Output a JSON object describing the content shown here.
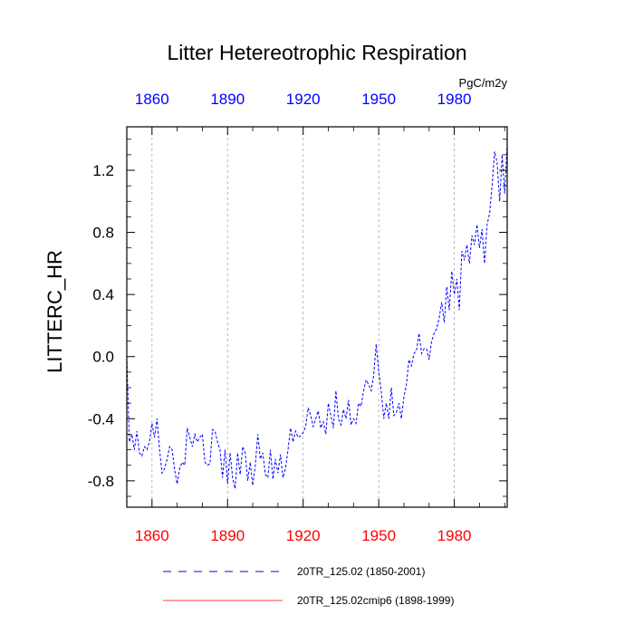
{
  "chart_data": {
    "type": "line",
    "title": "Litter Hetereotrophic Respiration",
    "ylabel": "LITTERC_HR",
    "units": "PgC/m2y",
    "xlim": [
      1850,
      2001
    ],
    "ylim": [
      -0.97,
      1.48
    ],
    "x_ticks": [
      1860,
      1890,
      1920,
      1950,
      1980
    ],
    "x_tick_labels": [
      "1860",
      "1890",
      "1920",
      "1950",
      "1980"
    ],
    "y_ticks": [
      -0.8,
      -0.4,
      0.0,
      0.4,
      0.8,
      1.2
    ],
    "y_tick_labels": [
      "-0.8",
      "-0.4",
      "0.0",
      "0.4",
      "0.8",
      "1.2"
    ],
    "grid": "vertical dashed",
    "legend_position": "bottom",
    "colors": {
      "series1": "#0000ff",
      "series2": "#ff0000",
      "top_ticks": "#0000ff",
      "bottom_ticks": "#ff0000",
      "grid": "#aaaaaa"
    },
    "series": [
      {
        "name": "20TR_125.02 (1850-2001)",
        "line_style": "dashed",
        "x": [
          1850,
          1851,
          1852,
          1853,
          1854,
          1855,
          1856,
          1857,
          1858,
          1859,
          1860,
          1861,
          1862,
          1863,
          1864,
          1865,
          1866,
          1867,
          1868,
          1869,
          1870,
          1871,
          1872,
          1873,
          1874,
          1875,
          1876,
          1877,
          1878,
          1879,
          1880,
          1881,
          1882,
          1883,
          1884,
          1885,
          1886,
          1887,
          1888,
          1889,
          1890,
          1891,
          1892,
          1893,
          1894,
          1895,
          1896,
          1897,
          1898,
          1899,
          1900,
          1901,
          1902,
          1903,
          1904,
          1905,
          1906,
          1907,
          1908,
          1909,
          1910,
          1911,
          1912,
          1913,
          1914,
          1915,
          1916,
          1917,
          1918,
          1919,
          1920,
          1921,
          1922,
          1923,
          1924,
          1925,
          1926,
          1927,
          1928,
          1929,
          1930,
          1931,
          1932,
          1933,
          1934,
          1935,
          1936,
          1937,
          1938,
          1939,
          1940,
          1941,
          1942,
          1943,
          1944,
          1945,
          1946,
          1947,
          1948,
          1949,
          1950,
          1951,
          1952,
          1953,
          1954,
          1955,
          1956,
          1957,
          1958,
          1959,
          1960,
          1961,
          1962,
          1963,
          1964,
          1965,
          1966,
          1967,
          1968,
          1969,
          1970,
          1971,
          1972,
          1973,
          1974,
          1975,
          1976,
          1977,
          1978,
          1979,
          1980,
          1981,
          1982,
          1983,
          1984,
          1985,
          1986,
          1987,
          1988,
          1989,
          1990,
          1991,
          1992,
          1993,
          1994,
          1995,
          1996,
          1997,
          1998,
          1999,
          2000,
          2001
        ],
        "values": [
          0.0,
          -0.55,
          -0.5,
          -0.6,
          -0.48,
          -0.62,
          -0.64,
          -0.58,
          -0.6,
          -0.55,
          -0.43,
          -0.52,
          -0.4,
          -0.6,
          -0.75,
          -0.72,
          -0.66,
          -0.58,
          -0.6,
          -0.73,
          -0.82,
          -0.72,
          -0.68,
          -0.7,
          -0.46,
          -0.52,
          -0.58,
          -0.5,
          -0.55,
          -0.52,
          -0.5,
          -0.68,
          -0.7,
          -0.69,
          -0.47,
          -0.48,
          -0.55,
          -0.6,
          -0.78,
          -0.6,
          -0.82,
          -0.62,
          -0.78,
          -0.85,
          -0.62,
          -0.76,
          -0.58,
          -0.62,
          -0.8,
          -0.68,
          -0.83,
          -0.7,
          -0.5,
          -0.66,
          -0.62,
          -0.76,
          -0.78,
          -0.6,
          -0.79,
          -0.66,
          -0.75,
          -0.63,
          -0.78,
          -0.72,
          -0.6,
          -0.46,
          -0.55,
          -0.48,
          -0.52,
          -0.51,
          -0.49,
          -0.45,
          -0.33,
          -0.38,
          -0.45,
          -0.4,
          -0.35,
          -0.46,
          -0.42,
          -0.5,
          -0.3,
          -0.38,
          -0.46,
          -0.22,
          -0.4,
          -0.44,
          -0.34,
          -0.4,
          -0.28,
          -0.44,
          -0.4,
          -0.43,
          -0.3,
          -0.32,
          -0.22,
          -0.15,
          -0.18,
          -0.22,
          -0.12,
          0.08,
          -0.1,
          -0.22,
          -0.4,
          -0.3,
          -0.4,
          -0.2,
          -0.38,
          -0.36,
          -0.3,
          -0.4,
          -0.26,
          -0.18,
          -0.02,
          -0.06,
          0.02,
          0.04,
          0.15,
          0.02,
          0.05,
          0.05,
          -0.02,
          0.1,
          0.15,
          0.18,
          0.25,
          0.35,
          0.22,
          0.45,
          0.3,
          0.55,
          0.4,
          0.5,
          0.3,
          0.68,
          0.62,
          0.72,
          0.6,
          0.78,
          0.72,
          0.85,
          0.7,
          0.82,
          0.6,
          0.85,
          0.92,
          1.1,
          1.32,
          1.25,
          1.0,
          1.3,
          1.05,
          1.37
        ]
      },
      {
        "name": "20TR_125.02cmip6 (1898-1999)",
        "line_style": "solid",
        "x": [],
        "values": []
      }
    ]
  }
}
